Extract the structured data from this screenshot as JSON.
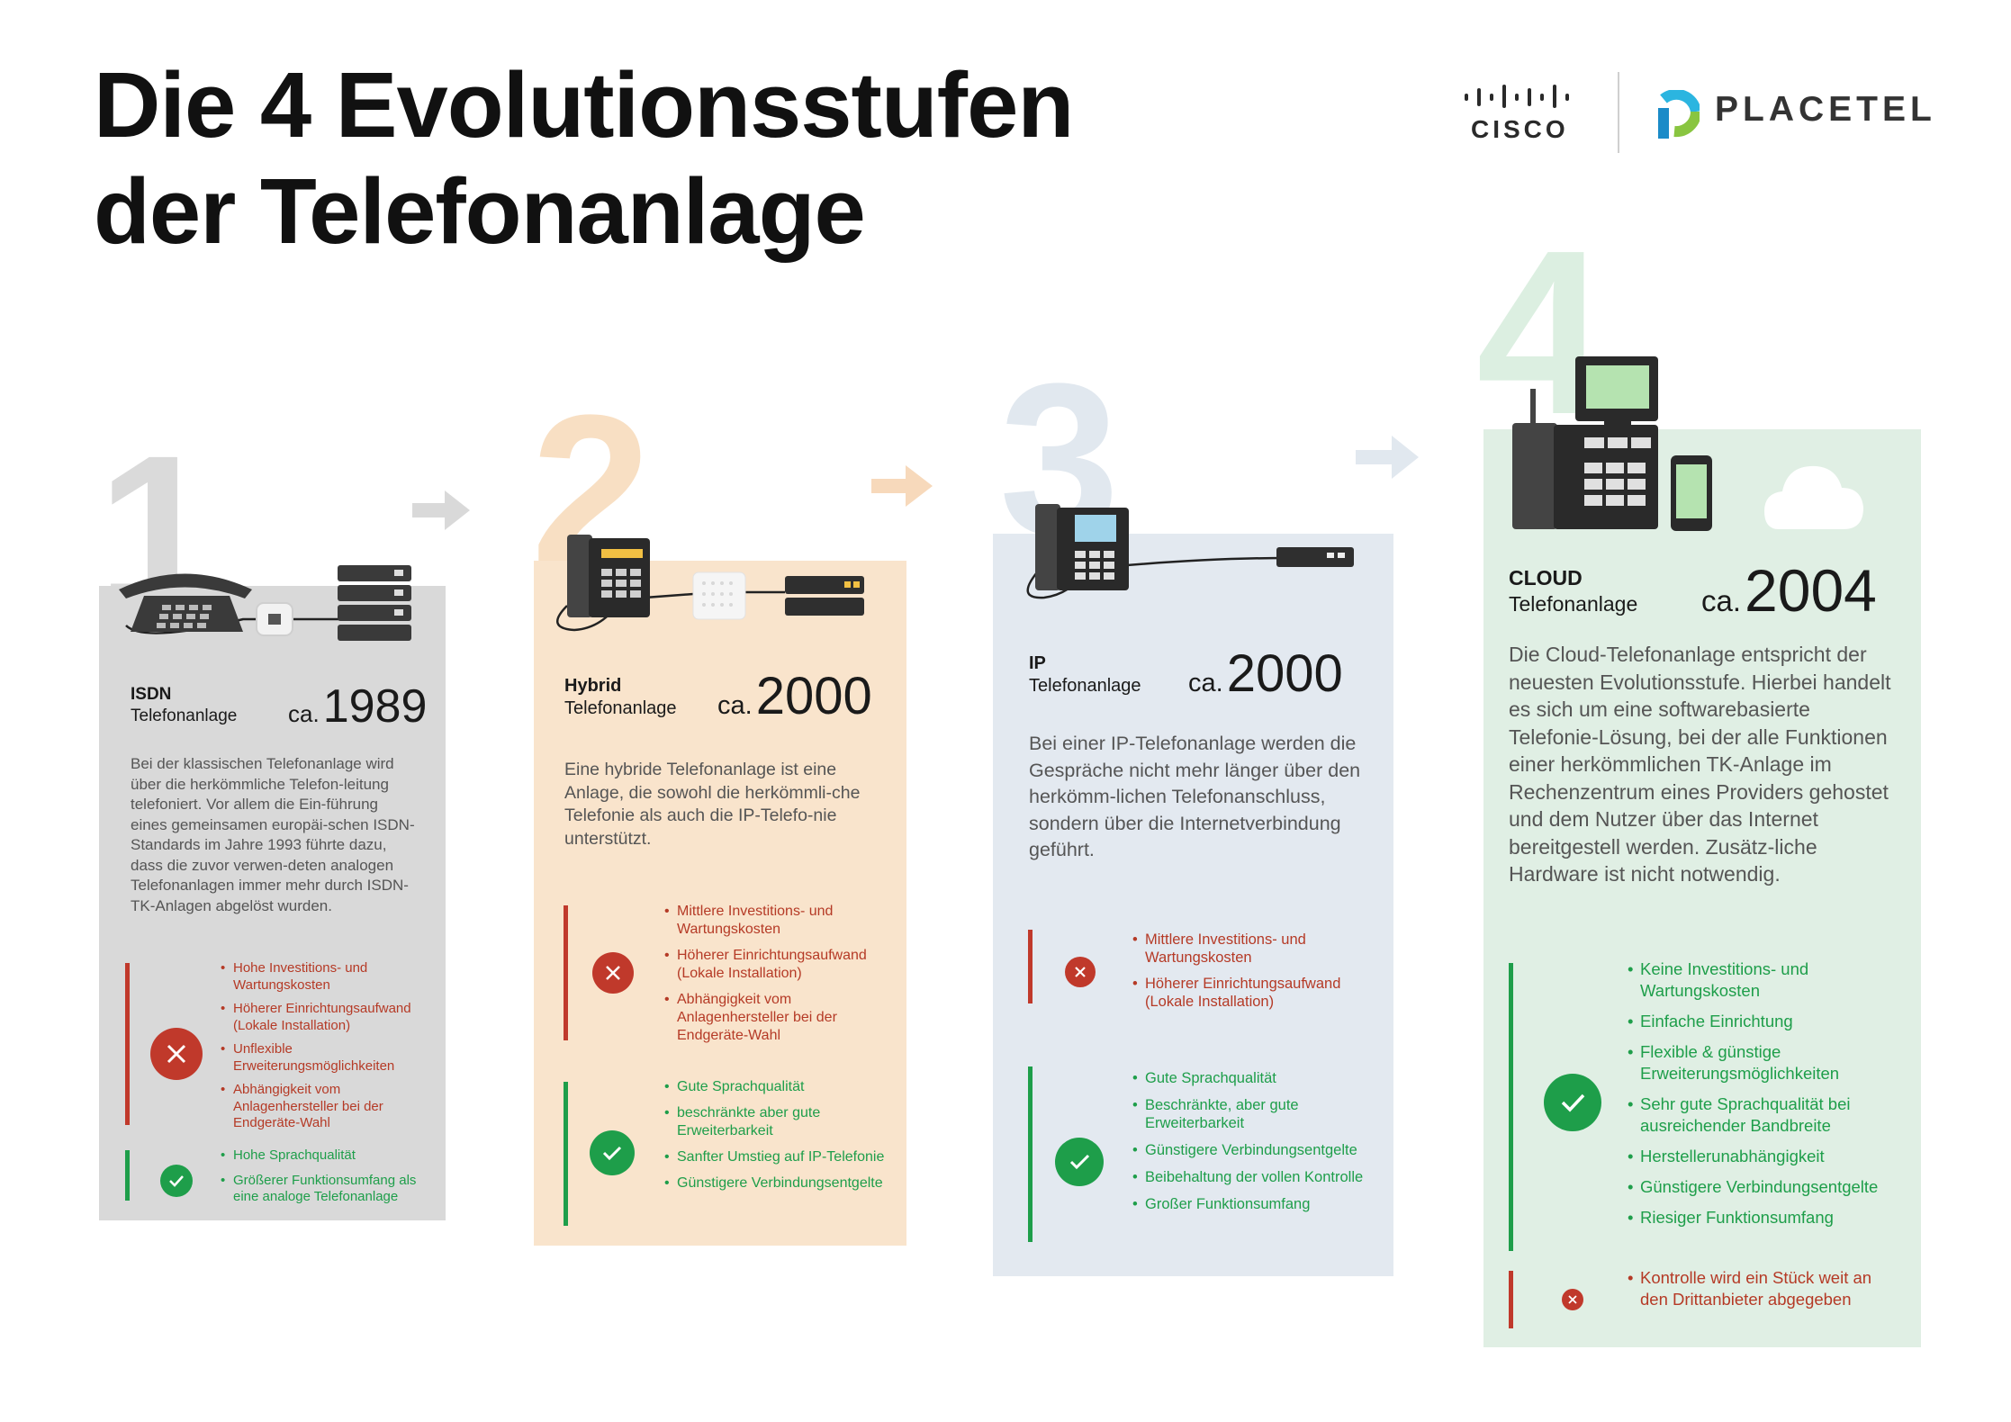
{
  "title": {
    "line1": "Die 4 Evolutionsstufen",
    "line2": "der Telefonanlage"
  },
  "logos": {
    "cisco": "CISCO",
    "placetel": "PLACETEL"
  },
  "ca_prefix": "ca.",
  "colors": {
    "card1": "#d9d9d9",
    "card2": "#f9e4cc",
    "card3": "#e3e9f0",
    "card4": "#e0efe4",
    "negative": "#c0392b",
    "positive": "#1e9e4a"
  },
  "stages": [
    {
      "number": "1",
      "name": "ISDN",
      "name_sub": "Telefonanlage",
      "year": "1989",
      "description": "Bei der klassischen Telefonanlage wird über die herkömmliche Telefon-leitung telefoniert. Vor allem die Ein-führung eines gemeinsamen europäi-schen ISDN-Standards im Jahre 1993 führte dazu, dass die zuvor verwen-deten analogen Telefonanlagen immer mehr durch ISDN-TK-Anlagen abgelöst wurden.",
      "cons": [
        "Hohe Investitions- und Wartungskosten",
        "Höherer Einrichtungsaufwand (Lokale Installation)",
        "Unflexible Erweiterungsmöglichkeiten",
        "Abhängigkeit vom Anlagenhersteller bei der Endgeräte-Wahl"
      ],
      "pros": [
        "Hohe Sprachqualität",
        "Größerer Funktionsumfang als eine analoge Telefonanlage"
      ]
    },
    {
      "number": "2",
      "name": "Hybrid",
      "name_sub": "Telefonanlage",
      "year": "2000",
      "description": "Eine hybride Telefonanlage ist eine Anlage, die sowohl die herkömmli-che Telefonie als auch die IP-Telefo-nie unterstützt.",
      "cons": [
        "Mittlere Investitions- und Wartungskosten",
        "Höherer Einrichtungsaufwand (Lokale Installation)",
        "Abhängigkeit vom Anlagenhersteller bei der Endgeräte-Wahl"
      ],
      "pros": [
        "Gute Sprachqualität",
        "beschränkte aber gute Erweiterbarkeit",
        "Sanfter Umstieg auf IP-Telefonie",
        "Günstigere Verbindungsentgelte"
      ]
    },
    {
      "number": "3",
      "name": "IP",
      "name_sub": "Telefonanlage",
      "year": "2000",
      "description": "Bei einer IP-Telefonanlage werden die Gespräche nicht mehr länger über den herkömm-lichen Telefonanschluss, sondern über die Internetverbindung geführt.",
      "cons": [
        "Mittlere Investitions- und Wartungskosten",
        "Höherer Einrichtungsaufwand (Lokale Installation)"
      ],
      "pros": [
        "Gute Sprachqualität",
        "Beschränkte, aber gute Erweiterbarkeit",
        "Günstigere Verbindungsentgelte",
        "Beibehaltung der vollen Kontrolle",
        "Großer Funktionsumfang"
      ]
    },
    {
      "number": "4",
      "name": "CLOUD",
      "name_sub": "Telefonanlage",
      "year": "2004",
      "description": "Die Cloud-Telefonanlage entspricht der neuesten Evolutionsstufe. Hierbei handelt es sich um eine softwarebasierte Telefonie-Lösung, bei der alle Funktionen einer herkömmlichen TK-Anlage im Rechenzentrum eines Providers gehostet und dem Nutzer über das Internet bereitgestell werden. Zusätz-liche Hardware ist nicht notwendig.",
      "pros": [
        "Keine Investitions- und Wartungskosten",
        "Einfache Einrichtung",
        "Flexible & günstige Erweiterungsmöglichkeiten",
        "Sehr gute Sprachqualität bei ausreichender Bandbreite",
        "Herstellerunabhängigkeit",
        "Günstigere Verbindungsentgelte",
        "Riesiger Funktionsumfang"
      ],
      "cons": [
        "Kontrolle wird ein Stück weit an den Drittanbieter abgegeben"
      ]
    }
  ]
}
